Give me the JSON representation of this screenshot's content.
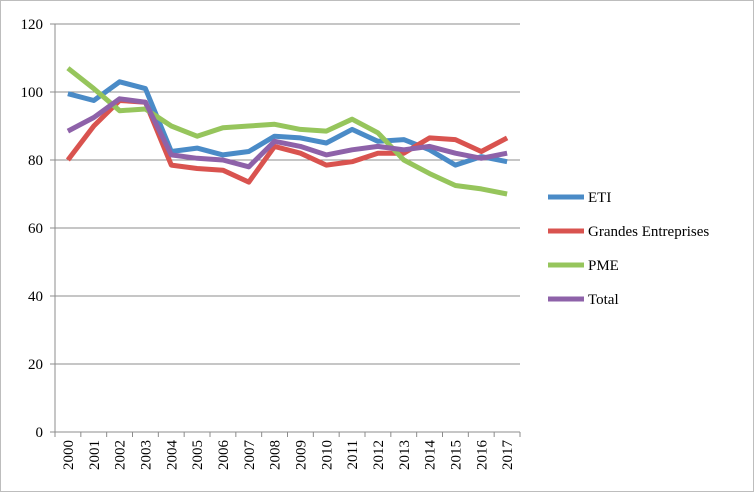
{
  "chart_data": {
    "type": "line",
    "title": "",
    "xlabel": "",
    "ylabel": "",
    "ylim": [
      0,
      120
    ],
    "yticks": [
      0,
      20,
      40,
      60,
      80,
      100,
      120
    ],
    "grid": "horizontal",
    "legend_position": "right",
    "categories": [
      "2000",
      "2001",
      "2002",
      "2003",
      "2004",
      "2005",
      "2006",
      "2007",
      "2008",
      "2009",
      "2010",
      "2011",
      "2012",
      "2013",
      "2014",
      "2015",
      "2016",
      "2017"
    ],
    "series": [
      {
        "name": "ETI",
        "color": "#4a8bc7",
        "values": [
          99.5,
          97.5,
          103,
          101,
          82.5,
          83.5,
          81.5,
          82.5,
          87,
          86.5,
          85,
          89,
          85.5,
          86,
          83,
          78.5,
          81,
          79.5
        ]
      },
      {
        "name": "Grandes Entreprises",
        "color": "#d9534f",
        "values": [
          80,
          90,
          97.5,
          97,
          78.5,
          77.5,
          77,
          73.5,
          84,
          82,
          78.5,
          79.5,
          82,
          82,
          86.5,
          86,
          82.5,
          86.5
        ]
      },
      {
        "name": "PME",
        "color": "#96c55c",
        "values": [
          107,
          101,
          94.5,
          95,
          90,
          87,
          89.5,
          90,
          90.5,
          89,
          88.5,
          92,
          88,
          80,
          76,
          72.5,
          71.5,
          70
        ]
      },
      {
        "name": "Total",
        "color": "#8e62a9",
        "values": [
          88.5,
          92.5,
          98,
          97,
          81.5,
          80.5,
          80,
          78,
          85.5,
          84,
          81.5,
          83,
          84,
          83,
          84,
          82,
          80.5,
          82
        ]
      }
    ]
  }
}
